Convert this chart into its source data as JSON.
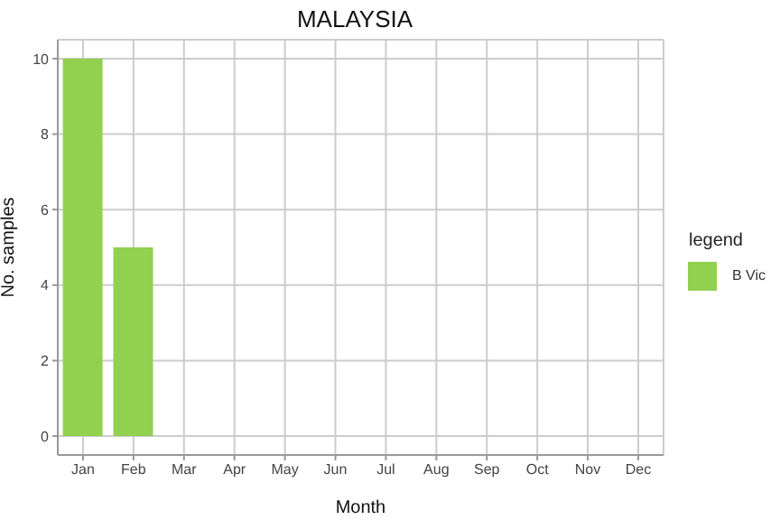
{
  "chart_data": {
    "type": "bar",
    "title": "MALAYSIA",
    "xlabel": "Month",
    "ylabel": "No. samples",
    "legend_title": "legend",
    "categories": [
      "Jan",
      "Feb",
      "Mar",
      "Apr",
      "May",
      "Jun",
      "Jul",
      "Aug",
      "Sep",
      "Oct",
      "Nov",
      "Dec"
    ],
    "series": [
      {
        "name": "B Vic",
        "color": "#92d050",
        "values": [
          10,
          5,
          null,
          null,
          null,
          null,
          null,
          null,
          null,
          null,
          null,
          null
        ]
      }
    ],
    "ylim": [
      -0.5,
      10.5
    ],
    "yticks": [
      0,
      2,
      4,
      6,
      8,
      10
    ],
    "grid": true,
    "legend": "right"
  }
}
